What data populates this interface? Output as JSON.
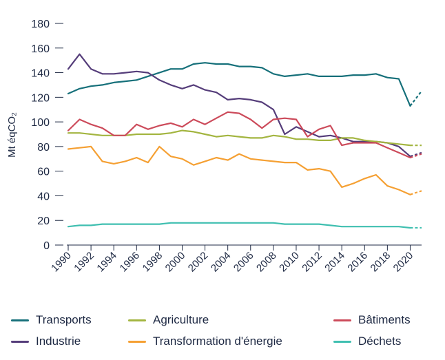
{
  "chart_data": {
    "type": "line",
    "ylabel": "Mt éqCO₂",
    "ylim": [
      0,
      180
    ],
    "yticks": [
      0,
      20,
      40,
      60,
      80,
      100,
      120,
      140,
      160,
      180
    ],
    "x": [
      1990,
      1991,
      1992,
      1993,
      1994,
      1995,
      1996,
      1997,
      1998,
      1999,
      2000,
      2001,
      2002,
      2003,
      2004,
      2005,
      2006,
      2007,
      2008,
      2009,
      2010,
      2011,
      2012,
      2013,
      2014,
      2015,
      2016,
      2017,
      2018,
      2019,
      2020
    ],
    "xtick_labels": [
      "1990",
      "1992",
      "1994",
      "1996",
      "1998",
      "2000",
      "2002",
      "2004",
      "2006",
      "2008",
      "2010",
      "2012",
      "2014",
      "2016",
      "2018",
      "2020"
    ],
    "projection_x": [
      2020,
      2021
    ],
    "grid": false,
    "legend_position": "bottom",
    "series": [
      {
        "name": "Transports",
        "color": "#16707a",
        "values": [
          123,
          127,
          129,
          130,
          132,
          133,
          134,
          137,
          140,
          143,
          143,
          147,
          148,
          147,
          147,
          145,
          145,
          144,
          139,
          137,
          138,
          139,
          137,
          137,
          137,
          138,
          138,
          139,
          136,
          135,
          113
        ],
        "projection": [
          113,
          125
        ]
      },
      {
        "name": "Industrie",
        "color": "#553d7a",
        "values": [
          143,
          155,
          143,
          139,
          139,
          140,
          141,
          140,
          134,
          130,
          127,
          130,
          126,
          124,
          118,
          119,
          118,
          116,
          110,
          90,
          96,
          92,
          88,
          89,
          87,
          84,
          84,
          84,
          83,
          80,
          72
        ],
        "projection": [
          72,
          75
        ]
      },
      {
        "name": "Agriculture",
        "color": "#a3b540",
        "values": [
          91,
          91,
          90,
          89,
          89,
          89,
          90,
          90,
          90,
          91,
          93,
          92,
          90,
          88,
          89,
          88,
          87,
          87,
          89,
          88,
          86,
          86,
          85,
          85,
          87,
          87,
          85,
          84,
          83,
          82,
          81
        ],
        "projection": [
          81,
          81
        ]
      },
      {
        "name": "Transformation d'énergie",
        "color": "#f5a033",
        "values": [
          78,
          79,
          80,
          68,
          66,
          68,
          71,
          67,
          80,
          72,
          70,
          65,
          68,
          71,
          69,
          74,
          70,
          69,
          68,
          67,
          67,
          61,
          62,
          60,
          47,
          50,
          54,
          57,
          48,
          45,
          41
        ],
        "projection": [
          41,
          44
        ]
      },
      {
        "name": "Bâtiments",
        "color": "#cc4a5a",
        "values": [
          93,
          102,
          98,
          95,
          89,
          89,
          98,
          94,
          97,
          99,
          96,
          102,
          98,
          103,
          108,
          107,
          102,
          95,
          102,
          103,
          102,
          88,
          94,
          97,
          81,
          83,
          83,
          83,
          79,
          75,
          71
        ],
        "projection": [
          71,
          74
        ]
      },
      {
        "name": "Déchets",
        "color": "#3fbfb0",
        "values": [
          15,
          16,
          16,
          17,
          17,
          17,
          17,
          17,
          17,
          18,
          18,
          18,
          18,
          18,
          18,
          18,
          18,
          18,
          18,
          17,
          17,
          17,
          17,
          16,
          15,
          15,
          15,
          15,
          15,
          15,
          14
        ],
        "projection": [
          14,
          14
        ]
      }
    ]
  },
  "legend": {
    "items": [
      {
        "label": "Transports",
        "color": "#16707a"
      },
      {
        "label": "Agriculture",
        "color": "#a3b540"
      },
      {
        "label": "Bâtiments",
        "color": "#cc4a5a"
      },
      {
        "label": "Industrie",
        "color": "#553d7a"
      },
      {
        "label": "Transformation d'énergie",
        "color": "#f5a033"
      },
      {
        "label": "Déchets",
        "color": "#3fbfb0"
      }
    ]
  }
}
